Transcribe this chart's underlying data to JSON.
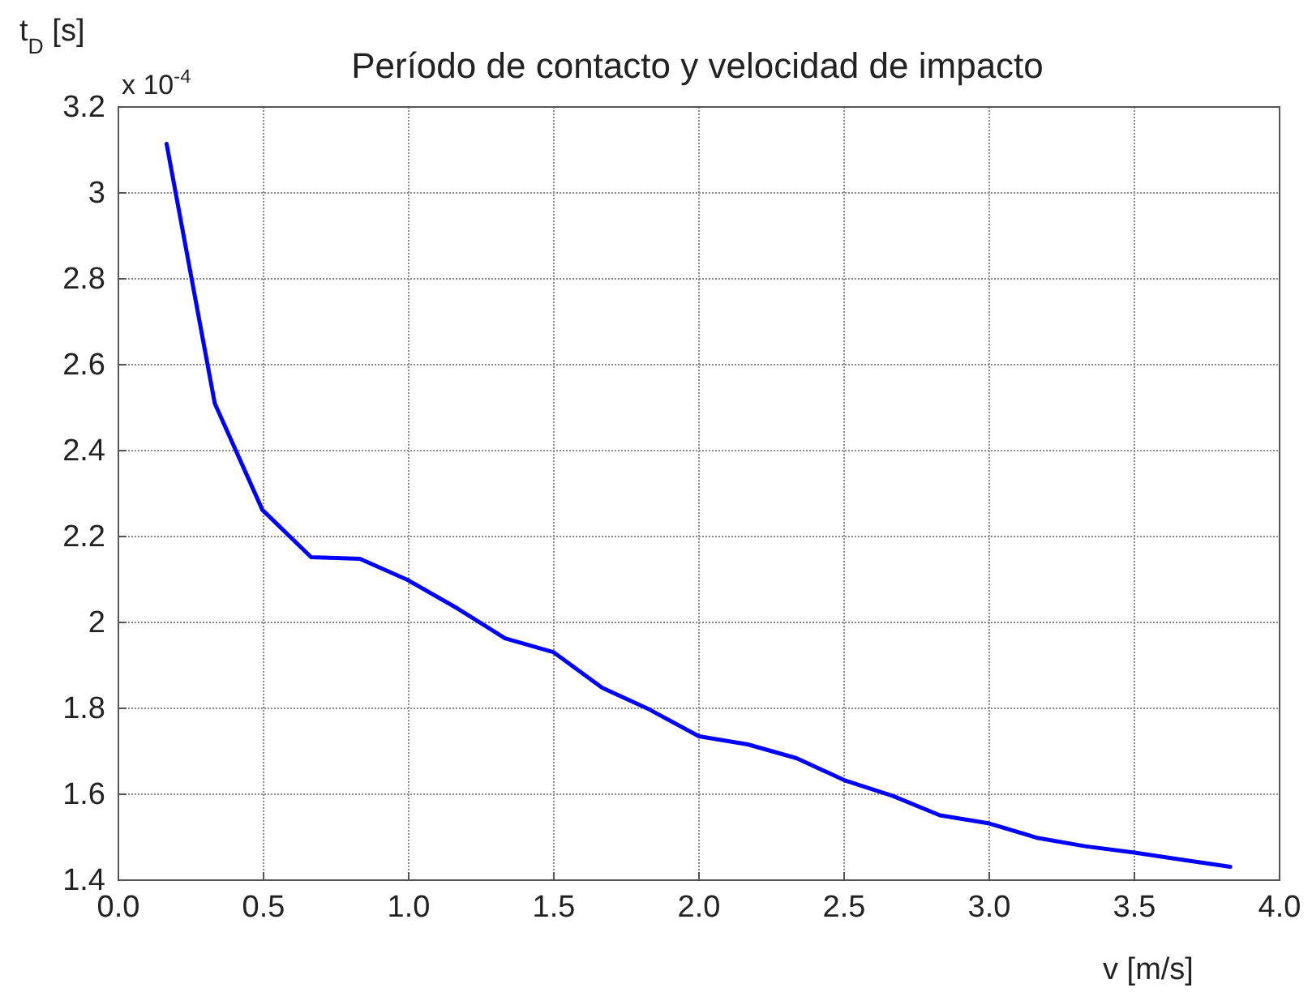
{
  "chart_data": {
    "type": "line",
    "title": "Período de contacto y velocidad de impacto",
    "xlabel": "v [m/s]",
    "ylabel": "t$_{D}$ [s]",
    "annotations": [
      "x 10$^{-4}$"
    ],
    "x": [
      0.166,
      0.332,
      0.496,
      0.664,
      0.832,
      0.996,
      1.167,
      1.332,
      1.498,
      1.666,
      1.83,
      2.0,
      2.168,
      2.336,
      2.5,
      2.668,
      2.83,
      3.0,
      3.168,
      3.33,
      3.5,
      3.668,
      3.83
    ],
    "series": [
      {
        "color": "#0000ff",
        "values": [
          3.114,
          2.51,
          2.262,
          2.152,
          2.148,
          2.099,
          2.033,
          1.963,
          1.931,
          1.848,
          1.797,
          1.735,
          1.716,
          1.684,
          1.633,
          1.596,
          1.551,
          1.532,
          1.498,
          1.479,
          1.464,
          1.447,
          1.431
        ]
      }
    ],
    "xlim": [
      0,
      4
    ],
    "xticks": [
      {
        "value": 0,
        "label": "0.0"
      },
      {
        "value": 0.5,
        "label": "0.5"
      },
      {
        "value": 1,
        "label": "1.0"
      },
      {
        "value": 1.5,
        "label": "1.5"
      },
      {
        "value": 2,
        "label": "2.0"
      },
      {
        "value": 2.5,
        "label": "2.5"
      },
      {
        "value": 3,
        "label": "3.0"
      },
      {
        "value": 3.5,
        "label": "3.5"
      },
      {
        "value": 4,
        "label": "4.0"
      }
    ],
    "ylim": [
      1.4,
      3.2
    ],
    "yticks": [
      1.4,
      1.6,
      1.8,
      2,
      2.2,
      2.4,
      2.6,
      2.8,
      3,
      3.2
    ],
    "grid": true,
    "marker": "none",
    "line_style": "solid"
  }
}
